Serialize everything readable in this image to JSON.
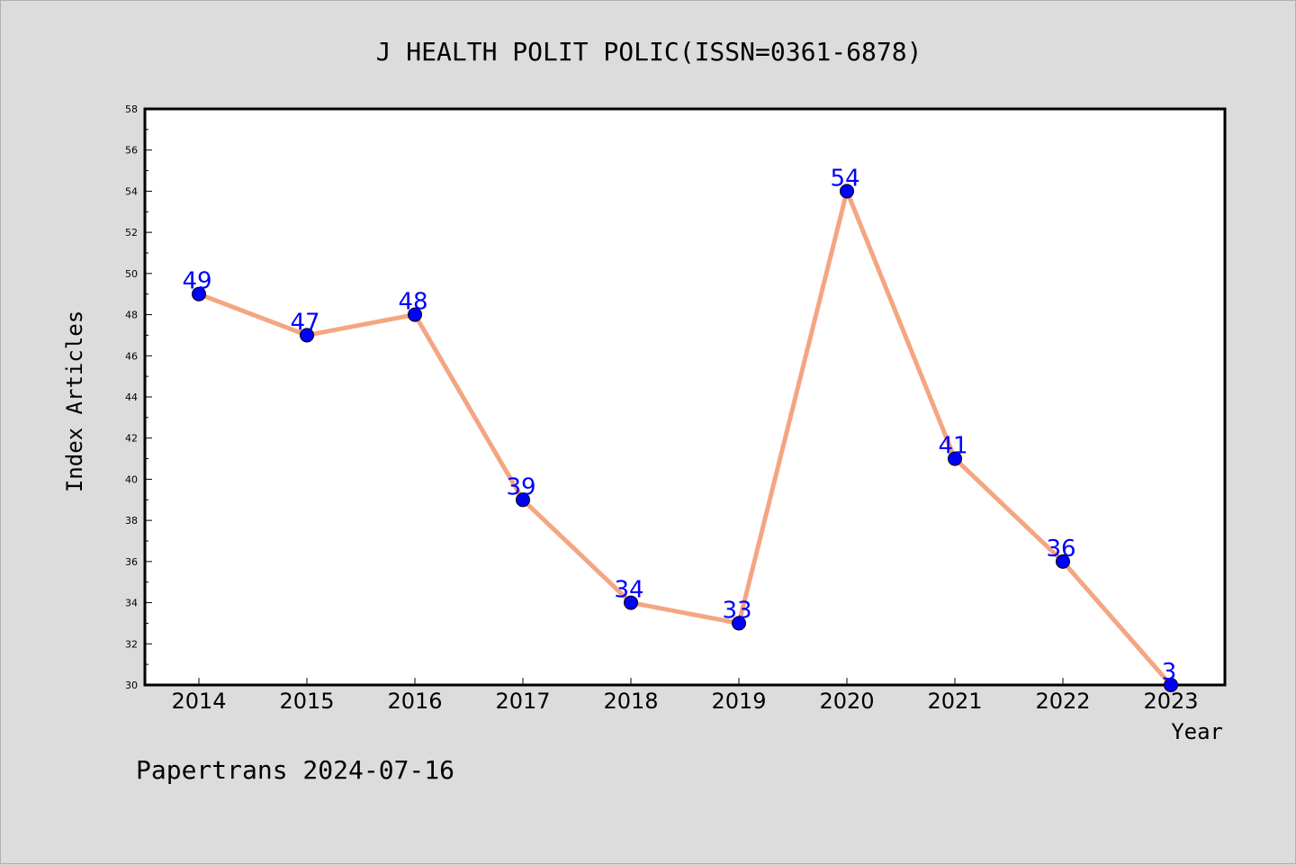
{
  "chart_data": {
    "type": "line",
    "title": "J HEALTH POLIT POLIC(ISSN=0361-6878)",
    "xlabel": "Year",
    "ylabel": "Index Articles",
    "footer": "Papertrans 2024-07-16",
    "categories": [
      "2014",
      "2015",
      "2016",
      "2017",
      "2018",
      "2019",
      "2020",
      "2021",
      "2022",
      "2023"
    ],
    "series": [
      {
        "values": [
          49,
          47,
          48,
          39,
          34,
          33,
          54,
          41,
          36,
          3
        ],
        "data_labels": [
          "49",
          "47",
          "48",
          "39",
          "34",
          "33",
          "54",
          "41",
          "36",
          "3"
        ]
      }
    ],
    "ylim": [
      30,
      58
    ],
    "y_ticks": [
      "30",
      "32",
      "34",
      "36",
      "38",
      "40",
      "42",
      "44",
      "46",
      "48",
      "50",
      "52",
      "54",
      "56",
      "58"
    ],
    "grid": false,
    "colors": {
      "background": "#dcdcdc",
      "plot_background": "#ffffff",
      "line": "#f4a582",
      "marker": "#0000ff",
      "data_label": "#0000ff",
      "axis": "#000000"
    }
  }
}
